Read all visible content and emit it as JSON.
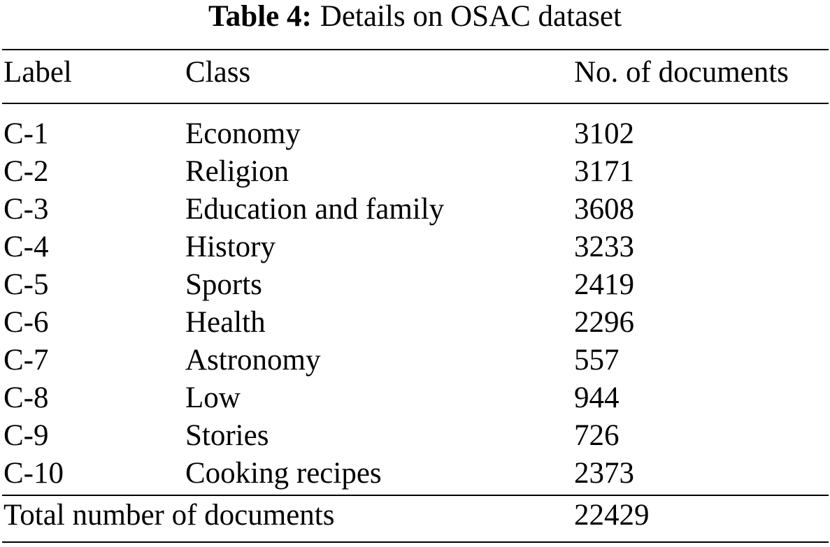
{
  "caption": {
    "label": "Table 4:",
    "text": "Details on OSAC dataset"
  },
  "table": {
    "headers": [
      "Label",
      "Class",
      "No. of documents"
    ],
    "rows": [
      {
        "label": "C-1",
        "class": "Economy",
        "docs": "3102"
      },
      {
        "label": "C-2",
        "class": "Religion",
        "docs": "3171"
      },
      {
        "label": "C-3",
        "class": "Education and family",
        "docs": "3608"
      },
      {
        "label": "C-4",
        "class": "History",
        "docs": "3233"
      },
      {
        "label": "C-5",
        "class": "Sports",
        "docs": "2419"
      },
      {
        "label": "C-6",
        "class": "Health",
        "docs": "2296"
      },
      {
        "label": "C-7",
        "class": "Astronomy",
        "docs": "557"
      },
      {
        "label": "C-8",
        "class": "Low",
        "docs": "944"
      },
      {
        "label": "C-9",
        "class": "Stories",
        "docs": "726"
      },
      {
        "label": "C-10",
        "class": "Cooking recipes",
        "docs": "2373"
      }
    ],
    "total": {
      "label": "Total number of documents",
      "docs": "22429"
    }
  }
}
